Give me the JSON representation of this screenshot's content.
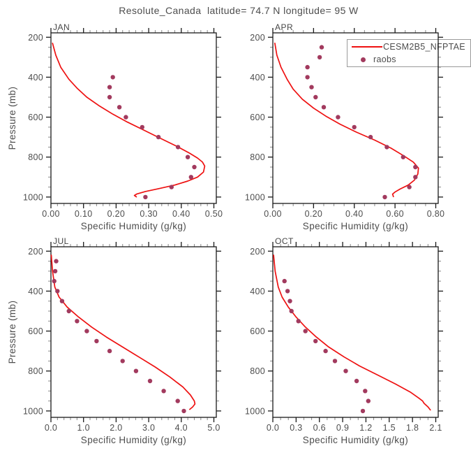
{
  "page_title": "Resolute_Canada  latitude= 74.7 N longitude= 95 W",
  "legend": {
    "entries": [
      {
        "label": "CESM2B5_NFPTAE",
        "marker": "line"
      },
      {
        "label": "raobs",
        "marker": "dot"
      }
    ]
  },
  "colors": {
    "model_line": "#ee1111",
    "raobs_dot": "#a23a5e",
    "axis": "#1a1a1a",
    "minor_tick": "#8a8a8a",
    "text": "#4d4d4d",
    "legend_border": "#9a9a9a"
  },
  "chart_data": [
    {
      "type": "line",
      "panel": "JAN",
      "xlabel": "Specific Humidity (g/kg)",
      "ylabel": "Pressure (mb)",
      "xlim": [
        0,
        0.5
      ],
      "ylim": [
        1000,
        200
      ],
      "x_ticks": [
        0.0,
        0.1,
        0.2,
        0.3,
        0.4,
        0.5
      ],
      "x_tick_labels": [
        "0.00",
        "0.10",
        "0.20",
        "0.30",
        "0.40",
        "0.50"
      ],
      "x_minor_step": 0.02,
      "y_ticks": [
        200,
        400,
        600,
        800,
        1000
      ],
      "y_tick_labels": [
        "200",
        "400",
        "600",
        "800",
        "1000"
      ],
      "y_minor_step": 50,
      "grid": false,
      "series": [
        {
          "name": "CESM2B5_NFPTAE",
          "style": "line",
          "points": [
            [
              0.005,
              230
            ],
            [
              0.015,
              290
            ],
            [
              0.03,
              350
            ],
            [
              0.055,
              410
            ],
            [
              0.08,
              455
            ],
            [
              0.11,
              500
            ],
            [
              0.15,
              545
            ],
            [
              0.19,
              585
            ],
            [
              0.235,
              625
            ],
            [
              0.285,
              665
            ],
            [
              0.335,
              705
            ],
            [
              0.385,
              745
            ],
            [
              0.425,
              780
            ],
            [
              0.45,
              805
            ],
            [
              0.465,
              825
            ],
            [
              0.472,
              845
            ],
            [
              0.468,
              875
            ],
            [
              0.45,
              900
            ],
            [
              0.42,
              920
            ],
            [
              0.38,
              940
            ],
            [
              0.33,
              958
            ],
            [
              0.29,
              972
            ],
            [
              0.263,
              985
            ],
            [
              0.256,
              992
            ],
            [
              0.262,
              999
            ]
          ]
        },
        {
          "name": "raobs",
          "style": "scatter",
          "points": [
            [
              0.19,
              400
            ],
            [
              0.18,
              450
            ],
            [
              0.18,
              500
            ],
            [
              0.21,
              550
            ],
            [
              0.23,
              600
            ],
            [
              0.28,
              650
            ],
            [
              0.33,
              700
            ],
            [
              0.39,
              750
            ],
            [
              0.42,
              800
            ],
            [
              0.44,
              850
            ],
            [
              0.43,
              900
            ],
            [
              0.37,
              950
            ],
            [
              0.29,
              1000
            ]
          ]
        }
      ]
    },
    {
      "type": "line",
      "panel": "APR",
      "xlabel": "Specific Humidity (g/kg)",
      "ylabel": "Pressure (mb)",
      "xlim": [
        0,
        0.8
      ],
      "ylim": [
        1000,
        200
      ],
      "x_ticks": [
        0.0,
        0.2,
        0.4,
        0.6,
        0.8
      ],
      "x_tick_labels": [
        "0.00",
        "0.20",
        "0.40",
        "0.60",
        "0.80"
      ],
      "x_minor_step": 0.05,
      "y_ticks": [
        200,
        400,
        600,
        800,
        1000
      ],
      "y_tick_labels": [
        "200",
        "400",
        "600",
        "800",
        "1000"
      ],
      "y_minor_step": 50,
      "grid": false,
      "series": [
        {
          "name": "CESM2B5_NFPTAE",
          "style": "line",
          "points": [
            [
              0.01,
              230
            ],
            [
              0.02,
              290
            ],
            [
              0.04,
              350
            ],
            [
              0.07,
              410
            ],
            [
              0.1,
              460
            ],
            [
              0.145,
              510
            ],
            [
              0.2,
              555
            ],
            [
              0.26,
              595
            ],
            [
              0.33,
              635
            ],
            [
              0.41,
              675
            ],
            [
              0.5,
              715
            ],
            [
              0.58,
              755
            ],
            [
              0.645,
              795
            ],
            [
              0.69,
              825
            ],
            [
              0.715,
              855
            ],
            [
              0.712,
              885
            ],
            [
              0.695,
              915
            ],
            [
              0.665,
              940
            ],
            [
              0.625,
              960
            ],
            [
              0.6,
              975
            ],
            [
              0.588,
              985
            ],
            [
              0.592,
              998
            ]
          ]
        },
        {
          "name": "raobs",
          "style": "scatter",
          "points": [
            [
              0.24,
              250
            ],
            [
              0.23,
              300
            ],
            [
              0.17,
              350
            ],
            [
              0.17,
              400
            ],
            [
              0.19,
              450
            ],
            [
              0.21,
              500
            ],
            [
              0.25,
              550
            ],
            [
              0.32,
              600
            ],
            [
              0.4,
              650
            ],
            [
              0.48,
              700
            ],
            [
              0.56,
              750
            ],
            [
              0.64,
              800
            ],
            [
              0.7,
              850
            ],
            [
              0.7,
              900
            ],
            [
              0.67,
              950
            ],
            [
              0.55,
              1000
            ]
          ]
        }
      ]
    },
    {
      "type": "line",
      "panel": "JUL",
      "xlabel": "Specific Humidity (g/kg)",
      "ylabel": "Pressure (mb)",
      "xlim": [
        0,
        5.0
      ],
      "ylim": [
        1000,
        200
      ],
      "x_ticks": [
        0.0,
        1.0,
        2.0,
        3.0,
        4.0,
        5.0
      ],
      "x_tick_labels": [
        "0.0",
        "1.0",
        "2.0",
        "3.0",
        "4.0",
        "5.0"
      ],
      "x_minor_step": 0.2,
      "y_ticks": [
        200,
        400,
        600,
        800,
        1000
      ],
      "y_tick_labels": [
        "200",
        "400",
        "600",
        "800",
        "1000"
      ],
      "y_minor_step": 50,
      "grid": false,
      "series": [
        {
          "name": "CESM2B5_NFPTAE",
          "style": "line",
          "points": [
            [
              0.01,
              220
            ],
            [
              0.05,
              300
            ],
            [
              0.12,
              380
            ],
            [
              0.25,
              430
            ],
            [
              0.5,
              480
            ],
            [
              0.85,
              530
            ],
            [
              1.25,
              580
            ],
            [
              1.7,
              630
            ],
            [
              2.2,
              680
            ],
            [
              2.7,
              730
            ],
            [
              3.2,
              780
            ],
            [
              3.65,
              830
            ],
            [
              4.05,
              880
            ],
            [
              4.28,
              920
            ],
            [
              4.4,
              950
            ],
            [
              4.42,
              965
            ],
            [
              4.35,
              980
            ],
            [
              4.26,
              992
            ]
          ]
        },
        {
          "name": "raobs",
          "style": "scatter",
          "points": [
            [
              0.16,
              250
            ],
            [
              0.13,
              300
            ],
            [
              0.1,
              350
            ],
            [
              0.2,
              400
            ],
            [
              0.34,
              450
            ],
            [
              0.55,
              500
            ],
            [
              0.8,
              550
            ],
            [
              1.1,
              600
            ],
            [
              1.4,
              650
            ],
            [
              1.8,
              700
            ],
            [
              2.2,
              750
            ],
            [
              2.61,
              800
            ],
            [
              3.04,
              850
            ],
            [
              3.46,
              900
            ],
            [
              3.89,
              950
            ],
            [
              4.08,
              1000
            ]
          ]
        }
      ]
    },
    {
      "type": "line",
      "panel": "OCT",
      "xlabel": "Specific Humidity (g/kg)",
      "ylabel": "Pressure (mb)",
      "xlim": [
        0,
        2.1
      ],
      "ylim": [
        1000,
        200
      ],
      "x_ticks": [
        0.0,
        0.3,
        0.6,
        0.9,
        1.2,
        1.5,
        1.8,
        2.1
      ],
      "x_tick_labels": [
        "0.0",
        "0.3",
        "0.6",
        "0.9",
        "1.2",
        "1.5",
        "1.8",
        "2.1"
      ],
      "x_minor_step": 0.1,
      "y_ticks": [
        200,
        400,
        600,
        800,
        1000
      ],
      "y_tick_labels": [
        "200",
        "400",
        "600",
        "800",
        "1000"
      ],
      "y_minor_step": 50,
      "grid": false,
      "series": [
        {
          "name": "CESM2B5_NFPTAE",
          "style": "line",
          "points": [
            [
              0.01,
              220
            ],
            [
              0.03,
              300
            ],
            [
              0.07,
              380
            ],
            [
              0.12,
              430
            ],
            [
              0.2,
              480
            ],
            [
              0.3,
              530
            ],
            [
              0.42,
              580
            ],
            [
              0.56,
              630
            ],
            [
              0.72,
              680
            ],
            [
              0.92,
              730
            ],
            [
              1.12,
              775
            ],
            [
              1.35,
              820
            ],
            [
              1.58,
              865
            ],
            [
              1.77,
              905
            ],
            [
              1.88,
              935
            ],
            [
              1.93,
              950
            ],
            [
              1.95,
              962
            ],
            [
              2.0,
              980
            ],
            [
              2.03,
              995
            ]
          ]
        },
        {
          "name": "raobs",
          "style": "scatter",
          "points": [
            [
              0.15,
              350
            ],
            [
              0.19,
              400
            ],
            [
              0.22,
              450
            ],
            [
              0.24,
              500
            ],
            [
              0.33,
              550
            ],
            [
              0.42,
              600
            ],
            [
              0.55,
              650
            ],
            [
              0.68,
              700
            ],
            [
              0.8,
              750
            ],
            [
              0.94,
              800
            ],
            [
              1.08,
              850
            ],
            [
              1.19,
              900
            ],
            [
              1.23,
              950
            ],
            [
              1.16,
              1000
            ]
          ]
        }
      ]
    }
  ]
}
